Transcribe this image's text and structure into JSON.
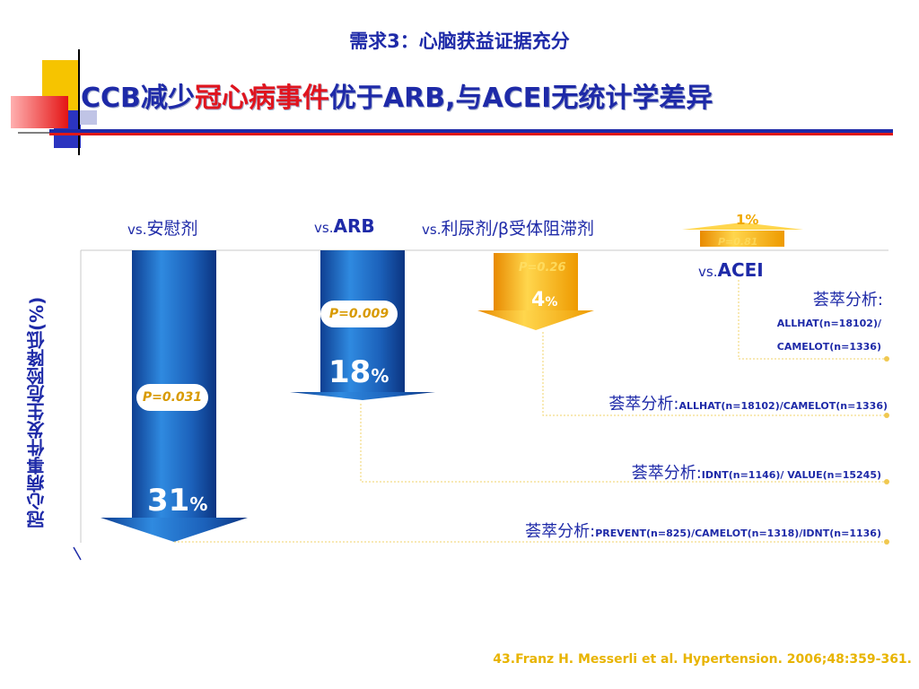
{
  "header": {
    "subtitle": "需求3：心脑获益证据充分",
    "title_part1": "CCB减少",
    "title_highlight": "冠心病事件",
    "title_part2": "优于ARB,与ACEI无统计学差异"
  },
  "y_axis_title": "冠心病事件发生危险降低(%)",
  "categories": {
    "placebo": {
      "vs": "vs.",
      "name": "安慰剂"
    },
    "arb": {
      "vs": "vs.",
      "name": "ARB"
    },
    "diuretic": {
      "vs": "vs.",
      "name": "利尿剂/β受体阻滞剂"
    },
    "acei": {
      "vs": "vs.",
      "name": "ACEI"
    }
  },
  "bars": {
    "placebo": {
      "value": "31",
      "unit": "%",
      "p": "P=0.031"
    },
    "arb": {
      "value": "18",
      "unit": "%",
      "p": "P=0.009"
    },
    "diuretic": {
      "value": "4",
      "unit": "%",
      "p": "P=0.26"
    },
    "acei": {
      "value": "1%",
      "p": "P=0.81"
    }
  },
  "meta": {
    "acei": {
      "label": "荟萃分析:",
      "line1": "ALLHAT(n=18102)/",
      "line2": "CAMELOT(n=1336)"
    },
    "diuretic": {
      "label": "荟萃分析:",
      "studies": "ALLHAT(n=18102)/CAMELOT(n=1336)"
    },
    "arb": {
      "label": "荟萃分析:",
      "studies": "IDNT(n=1146)/ VALUE(n=15245)"
    },
    "placebo": {
      "label": "荟萃分析:",
      "studies": "PREVENT(n=825)/CAMELOT(n=1318)/IDNT(n=1136)"
    }
  },
  "reference": "43.Franz H. Messerli et al. Hypertension. 2006;48:359-361.",
  "colors": {
    "primary": "#1e2aa8",
    "accent": "#e0141e",
    "gold": "#f0a800",
    "bar_blue": "#1f6bc4"
  },
  "chart_data": {
    "type": "bar",
    "orientation": "downward",
    "categories": [
      "vs.安慰剂",
      "vs.ARB",
      "vs.利尿剂/β受体阻滞剂",
      "vs.ACEI"
    ],
    "values": [
      31,
      18,
      4,
      1
    ],
    "p_values": [
      "P=0.031",
      "P=0.009",
      "P=0.26",
      "P=0.81"
    ],
    "ylabel": "冠心病事件发生危险降低(%)"
  }
}
